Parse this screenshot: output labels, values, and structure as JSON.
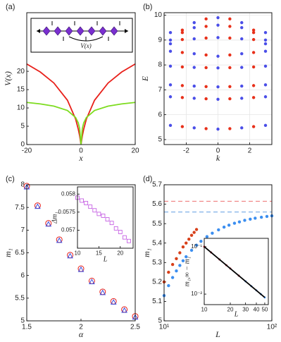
{
  "chart_data": [
    {
      "type": "line",
      "title": "(a)",
      "xlabel": "x",
      "ylabel": "V(x)",
      "annotation": "V(x)",
      "x": [
        -20,
        -15,
        -10,
        -5,
        -2,
        -1,
        -0.5,
        0,
        0.5,
        1,
        2,
        5,
        10,
        15,
        20
      ],
      "series": [
        {
          "color": "#e8201a",
          "style": "line",
          "values": [
            22,
            19.8,
            16.8,
            12.1,
            7.0,
            4.2,
            2.4,
            0,
            2.4,
            4.2,
            7.0,
            12.1,
            16.8,
            19.8,
            22
          ]
        },
        {
          "color": "#7ddc1f",
          "style": "line",
          "values": [
            11.5,
            11.1,
            10.5,
            9.3,
            7.4,
            5.9,
            4.4,
            0,
            4.4,
            5.9,
            7.4,
            9.3,
            10.5,
            11.1,
            11.5
          ]
        }
      ],
      "xlim": [
        -20,
        20
      ],
      "xticks": [
        -20,
        0,
        20
      ],
      "ylim": [
        0,
        36
      ],
      "yticks": [
        0,
        5,
        10,
        15,
        20
      ],
      "grid": false
    },
    {
      "type": "scatter",
      "title": "(b)",
      "xlabel": "k",
      "ylabel": "E",
      "series": [
        {
          "color": "#4a4ee8",
          "marker": "circle",
          "x": [
            -3,
            -1.5,
            0,
            1.5,
            3,
            -3,
            -1.5,
            0,
            1.5,
            3,
            -3,
            -1.5,
            0,
            1.5,
            3,
            -3,
            -1.5,
            0,
            1.5,
            3,
            -3,
            -1.5,
            0,
            1.5,
            3,
            -3,
            -1.5,
            0,
            1.5,
            3,
            -3,
            -1.5,
            0,
            1.5,
            3,
            -3,
            -1.5,
            0,
            1.5,
            3
          ],
          "values": [
            5.57,
            5.47,
            5.42,
            5.47,
            5.57,
            6.72,
            6.66,
            6.62,
            6.66,
            6.72,
            7.2,
            7.15,
            7.12,
            7.15,
            7.2,
            7.95,
            7.9,
            7.88,
            7.9,
            7.95,
            8.55,
            8.45,
            8.35,
            8.45,
            8.55,
            9.0,
            9.05,
            9.1,
            9.05,
            9.0,
            9.3,
            9.5,
            9.6,
            9.5,
            9.3,
            8.85,
            9.7,
            9.9,
            9.7,
            8.85
          ]
        },
        {
          "color": "#e8301a",
          "marker": "circle",
          "x": [
            -2.25,
            -0.75,
            0.75,
            2.25,
            -2.25,
            -0.75,
            0.75,
            2.25,
            -2.25,
            -0.75,
            0.75,
            2.25,
            -2.25,
            -0.75,
            0.75,
            2.25,
            -2.25,
            -0.75,
            0.75,
            2.25,
            -2.25,
            -0.75,
            0.75,
            2.25,
            -2.25,
            -0.75,
            0.75,
            2.25,
            -2.25,
            -0.75,
            0.75,
            2.25
          ],
          "values": [
            5.52,
            5.44,
            5.44,
            5.52,
            6.69,
            6.64,
            6.64,
            6.69,
            7.17,
            7.13,
            7.13,
            7.17,
            7.92,
            7.89,
            7.89,
            7.92,
            8.5,
            8.4,
            8.4,
            8.5,
            9.02,
            9.08,
            9.08,
            9.02,
            9.4,
            9.55,
            9.55,
            9.4,
            9.3,
            9.85,
            9.85,
            9.3
          ]
        }
      ],
      "xlim": [
        -3.4,
        3.4
      ],
      "xticks": [
        -2,
        0,
        2
      ],
      "ylim": [
        4.8,
        10.1
      ],
      "yticks": [
        5,
        6,
        7,
        8,
        9,
        10
      ],
      "grid": true
    },
    {
      "type": "scatter",
      "title": "(c)",
      "xlabel": "α",
      "ylabel": "m₁",
      "x": [
        1.5,
        1.6,
        1.7,
        1.8,
        1.9,
        2.0,
        2.1,
        2.2,
        2.3,
        2.4,
        2.5
      ],
      "series": [
        {
          "color": "#e8201a",
          "marker": "open-circle",
          "values": [
            7.97,
            7.54,
            7.15,
            6.79,
            6.45,
            6.15,
            5.88,
            5.64,
            5.43,
            5.25,
            5.1
          ]
        },
        {
          "color": "#3a4ee0",
          "marker": "open-triangle",
          "values": [
            7.95,
            7.52,
            7.13,
            6.77,
            6.43,
            6.13,
            5.86,
            5.62,
            5.41,
            5.23,
            5.08
          ]
        }
      ],
      "xlim": [
        1.5,
        2.5
      ],
      "xticks": [
        1.5,
        2,
        2.5
      ],
      "ylim": [
        5,
        8
      ],
      "yticks": [
        5,
        5.5,
        6,
        6.5,
        7,
        7.5,
        8
      ],
      "grid": false
    },
    {
      "type": "scatter",
      "xlabel": "L",
      "ylabel": "Δm₁",
      "x": [
        10,
        11,
        12,
        13,
        14,
        15,
        16,
        17,
        18,
        19,
        20,
        21,
        22
      ],
      "series": [
        {
          "color": "#c050e0",
          "marker": "open-square",
          "values": [
            0.0579,
            0.05782,
            0.05775,
            0.05765,
            0.05755,
            0.05745,
            0.0574,
            0.0573,
            0.0572,
            0.05705,
            0.05695,
            0.0568,
            0.0567
          ]
        }
      ],
      "xlim": [
        10,
        23
      ],
      "xticks": [
        10,
        15,
        20
      ],
      "ylim": [
        0.0565,
        0.0582
      ],
      "yticks": [
        0.057,
        0.0575,
        0.058
      ],
      "grid": false
    },
    {
      "type": "scatter",
      "title": "(d)",
      "xlabel": "L",
      "ylabel": "m₁",
      "xscale": "log",
      "series": [
        {
          "color": "#3b8ef0",
          "marker": "circle",
          "x": [
            10,
            11,
            12,
            13,
            14,
            15,
            16,
            18,
            20,
            22,
            25,
            28,
            32,
            36,
            40,
            45,
            50,
            56,
            63,
            70,
            80,
            90,
            100
          ],
          "values": [
            5.13,
            5.181,
            5.223,
            5.257,
            5.285,
            5.309,
            5.33,
            5.363,
            5.389,
            5.409,
            5.433,
            5.451,
            5.468,
            5.482,
            5.492,
            5.502,
            5.509,
            5.517,
            5.523,
            5.528,
            5.533,
            5.537,
            5.54
          ]
        },
        {
          "color": "#d8401a",
          "marker": "circle",
          "x": [
            10,
            11,
            12,
            13,
            14,
            15,
            16,
            17,
            18,
            19,
            20
          ],
          "values": [
            5.2,
            5.25,
            5.29,
            5.32,
            5.35,
            5.38,
            5.4,
            5.42,
            5.44,
            5.455,
            5.47
          ]
        }
      ],
      "reference_lines": [
        {
          "value": 5.615,
          "color": "#f08080"
        },
        {
          "value": 5.56,
          "color": "#80b0e8"
        }
      ],
      "xlim": [
        10,
        100
      ],
      "xticks": [
        {
          "value": 10,
          "label": "10¹"
        },
        {
          "value": 100,
          "label": "10²"
        }
      ],
      "ylim": [
        5,
        5.7
      ],
      "yticks": [
        5,
        5.1,
        5.2,
        5.3,
        5.4,
        5.5,
        5.6,
        5.7
      ],
      "grid": false
    },
    {
      "type": "scatter",
      "xlabel": "L",
      "ylabel": "m₁,∞ − m₁",
      "xscale": "log",
      "yscale": "log",
      "series": [
        {
          "color": "#3b8ef0",
          "marker": "dot",
          "x": [
            10,
            12,
            15,
            18,
            20,
            25,
            30,
            35,
            40,
            45,
            50
          ],
          "values": [
            0.1,
            0.0757,
            0.0538,
            0.0407,
            0.0346,
            0.0246,
            0.0186,
            0.0147,
            0.012,
            0.01,
            0.0085
          ]
        },
        {
          "color": "#e8201a",
          "marker": "dot",
          "x": [
            10,
            12,
            15,
            18,
            20,
            25
          ],
          "values": [
            0.1,
            0.0757,
            0.0538,
            0.0407,
            0.0346,
            0.0246
          ]
        },
        {
          "color": "#000000",
          "style": "line",
          "x": [
            10,
            50
          ],
          "values": [
            0.1,
            0.0085
          ]
        }
      ],
      "xlim": [
        10,
        55
      ],
      "xticks": [
        10,
        20,
        30,
        40,
        50
      ],
      "ylim": [
        0.006,
        0.15
      ],
      "yticks": [
        {
          "value": 0.01,
          "label": "10⁻²"
        },
        {
          "value": 0.1,
          "label": "10⁻¹"
        }
      ],
      "grid": false
    }
  ]
}
